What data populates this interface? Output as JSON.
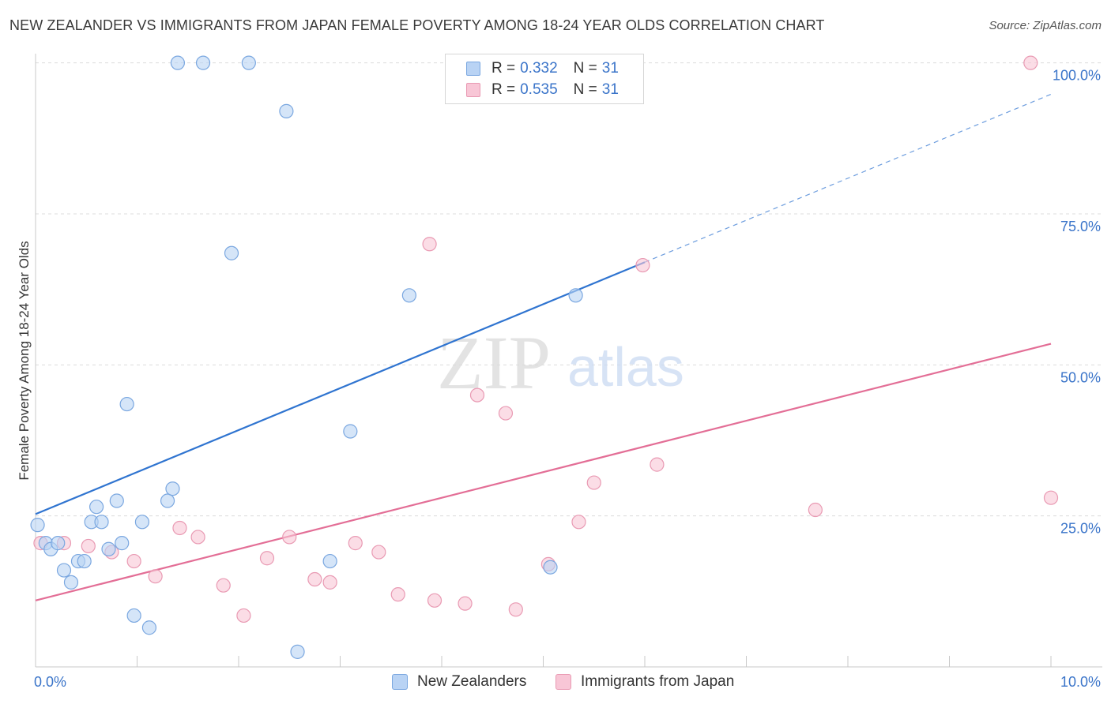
{
  "title": "NEW ZEALANDER VS IMMIGRANTS FROM JAPAN FEMALE POVERTY AMONG 18-24 YEAR OLDS CORRELATION CHART",
  "source": "Source: ZipAtlas.com",
  "watermark": {
    "zip": "ZIP",
    "atlas": "atlas"
  },
  "legend": {
    "r_label": "R =",
    "n_label": "N =",
    "items": [
      {
        "name": "New Zealanders",
        "r": "0.332",
        "n": "31"
      },
      {
        "name": "Immigrants from Japan",
        "r": "0.535",
        "n": "31"
      }
    ]
  },
  "colors": {
    "blue_fill": "#b9d3f4",
    "blue_stroke": "#7aa7e0",
    "blue_line": "#2f74d0",
    "pink_fill": "#f8c6d6",
    "pink_stroke": "#e99ab3",
    "pink_line": "#e36e96",
    "tick_label": "#3a74c9"
  },
  "chart_data": {
    "type": "scatter",
    "title": "NEW ZEALANDER VS IMMIGRANTS FROM JAPAN FEMALE POVERTY AMONG 18-24 YEAR OLDS CORRELATION CHART",
    "xlabel": "",
    "ylabel": "Female Poverty Among 18-24 Year Olds",
    "xlim": [
      0,
      10
    ],
    "ylim": [
      0,
      101
    ],
    "x_tick_labels": [
      {
        "value": 0,
        "label": "0.0%"
      },
      {
        "value": 10,
        "label": "10.0%"
      }
    ],
    "y_tick_labels": [
      {
        "value": 25,
        "label": "25.0%"
      },
      {
        "value": 50,
        "label": "50.0%"
      },
      {
        "value": 75,
        "label": "75.0%"
      },
      {
        "value": 100,
        "label": "100.0%"
      }
    ],
    "grid": true,
    "legend_position": "top-center",
    "series": [
      {
        "name": "New Zealanders",
        "r": 0.332,
        "n": 31,
        "trend": {
          "x0": 0,
          "y0": 25.3,
          "x1": 6,
          "y1": 67.0,
          "dashed_to_x": 10,
          "dashed_to_y": 94.8
        },
        "points": [
          [
            0.02,
            23.5
          ],
          [
            0.1,
            20.5
          ],
          [
            0.15,
            19.5
          ],
          [
            0.22,
            20.5
          ],
          [
            0.28,
            16.0
          ],
          [
            0.35,
            14.0
          ],
          [
            0.42,
            17.5
          ],
          [
            0.48,
            17.5
          ],
          [
            0.55,
            24.0
          ],
          [
            0.6,
            26.5
          ],
          [
            0.65,
            24.0
          ],
          [
            0.72,
            19.5
          ],
          [
            0.8,
            27.5
          ],
          [
            0.85,
            20.5
          ],
          [
            0.9,
            43.5
          ],
          [
            0.97,
            8.5
          ],
          [
            1.05,
            24.0
          ],
          [
            1.12,
            6.5
          ],
          [
            1.3,
            27.5
          ],
          [
            1.35,
            29.5
          ],
          [
            1.4,
            100
          ],
          [
            1.65,
            100
          ],
          [
            1.93,
            68.5
          ],
          [
            2.1,
            100
          ],
          [
            2.47,
            92
          ],
          [
            2.58,
            2.5
          ],
          [
            2.9,
            17.5
          ],
          [
            3.1,
            39
          ],
          [
            3.68,
            61.5
          ],
          [
            5.07,
            16.5
          ],
          [
            5.32,
            61.5
          ]
        ]
      },
      {
        "name": "Immigrants from Japan",
        "r": 0.535,
        "n": 31,
        "trend": {
          "x0": 0,
          "y0": 11.0,
          "x1": 10,
          "y1": 53.5
        },
        "points": [
          [
            0.05,
            20.5
          ],
          [
            0.28,
            20.5
          ],
          [
            0.52,
            20.0
          ],
          [
            0.75,
            19.0
          ],
          [
            0.97,
            17.5
          ],
          [
            1.18,
            15.0
          ],
          [
            1.42,
            23.0
          ],
          [
            1.6,
            21.5
          ],
          [
            1.85,
            13.5
          ],
          [
            2.05,
            8.5
          ],
          [
            2.28,
            18.0
          ],
          [
            2.5,
            21.5
          ],
          [
            2.75,
            14.5
          ],
          [
            2.9,
            14.0
          ],
          [
            3.15,
            20.5
          ],
          [
            3.38,
            19.0
          ],
          [
            3.57,
            12.0
          ],
          [
            3.88,
            70.0
          ],
          [
            3.93,
            11.0
          ],
          [
            4.23,
            10.5
          ],
          [
            4.35,
            45.0
          ],
          [
            4.63,
            42.0
          ],
          [
            4.73,
            9.5
          ],
          [
            5.05,
            17.0
          ],
          [
            5.35,
            24.0
          ],
          [
            5.5,
            30.5
          ],
          [
            5.98,
            66.5
          ],
          [
            6.12,
            33.5
          ],
          [
            7.68,
            26.0
          ],
          [
            9.8,
            100
          ],
          [
            10.0,
            28.0
          ]
        ]
      }
    ]
  }
}
